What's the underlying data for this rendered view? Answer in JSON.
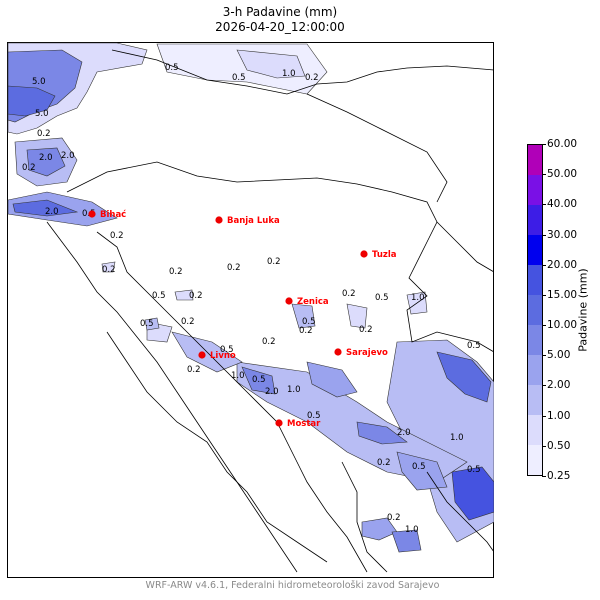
{
  "title": "3-h Padavine (mm)",
  "subtitle": "2026-04-20_12:00:00",
  "footer": "WRF-ARW v4.6.1, Federalni hidrometeorološki zavod Sarajevo",
  "colorbar": {
    "label": "Padavine (mm)",
    "levels": [
      "0.25",
      "0.50",
      "1.00",
      "2.00",
      "5.00",
      "10.00",
      "15.00",
      "20.00",
      "30.00",
      "40.00",
      "50.00",
      "60.00"
    ],
    "colors": [
      "#eeeeff",
      "#dcdcfc",
      "#b8bdf4",
      "#9aa3ee",
      "#7b87e6",
      "#5c6ce0",
      "#4553e0",
      "#0000ee",
      "#3d1de6",
      "#7a10e6",
      "#b000b8"
    ]
  },
  "cities": [
    {
      "name": "Bihać"
    },
    {
      "name": "Banja Luka"
    },
    {
      "name": "Tuzla"
    },
    {
      "name": "Zenica"
    },
    {
      "name": "Sarajevo"
    },
    {
      "name": "Livno"
    },
    {
      "name": "Mostar"
    }
  ],
  "contour_labels": [
    "0.5",
    "0.5",
    "1.0",
    "0.2",
    "5.0",
    "5.0",
    "2.0",
    "0.2",
    "2.0",
    "0.2",
    "2.0",
    "0.5",
    "0.2",
    "0.2",
    "0.2",
    "0.2",
    "0.2",
    "0.5",
    "0.2",
    "0.5",
    "0.2",
    "0.2",
    "0.2",
    "1.0",
    "0.5",
    "0.2",
    "0.5",
    "0.2",
    "0.5",
    "0.2",
    "1.0",
    "0.5",
    "2.0",
    "1.0",
    "0.5",
    "0.2",
    "2.0",
    "0.5",
    "0.2",
    "1.0",
    "0.5",
    "1.0",
    "0.5"
  ],
  "colors": {
    "city_marker": "#ee0000",
    "border": "#000000"
  }
}
